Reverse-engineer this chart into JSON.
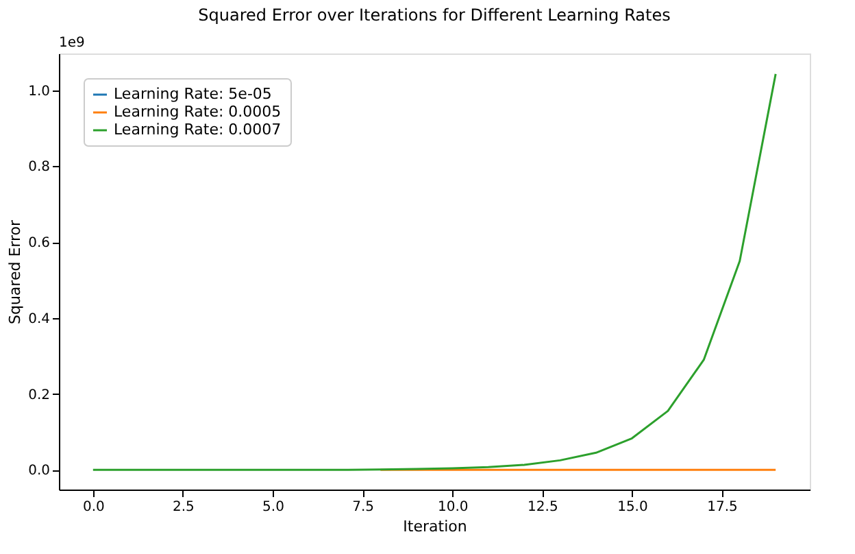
{
  "chart_data": {
    "type": "line",
    "title": "Squared Error over Iterations for Different Learning Rates",
    "xlabel": "Iteration",
    "ylabel": "Squared Error",
    "x": [
      0,
      1,
      2,
      3,
      4,
      5,
      6,
      7,
      8,
      9,
      10,
      11,
      12,
      13,
      14,
      15,
      16,
      17,
      18,
      19
    ],
    "series": [
      {
        "name": "Learning Rate: 5e-05",
        "color": "#1f77b4",
        "values": [
          null,
          null,
          null,
          null,
          null,
          null,
          null,
          null,
          null,
          null,
          null,
          null,
          null,
          null,
          null,
          null,
          null,
          null,
          null,
          null
        ]
      },
      {
        "name": "Learning Rate: 0.0005",
        "color": "#ff7f0e",
        "values": [
          null,
          null,
          null,
          null,
          null,
          null,
          null,
          null,
          0,
          0,
          0,
          0,
          0,
          0,
          0,
          0,
          0,
          0,
          0,
          0
        ]
      },
      {
        "name": "Learning Rate: 0.0007",
        "color": "#2ca02c",
        "values": [
          0,
          0,
          0,
          0,
          0,
          0,
          0,
          0,
          0.001,
          0.002,
          0.004,
          0.007,
          0.013,
          0.025,
          0.045,
          0.083,
          0.155,
          0.29,
          0.55,
          1.043
        ]
      }
    ],
    "xlim": [
      -0.95,
      19.95
    ],
    "ylim": [
      -0.052,
      1.097
    ],
    "xticks": [
      {
        "value": 0,
        "label": "0.0"
      },
      2.5,
      {
        "value": 5,
        "label": "5.0"
      },
      7.5,
      {
        "value": 10,
        "label": "10.0"
      },
      12.5,
      {
        "value": 15,
        "label": "15.0"
      },
      17.5
    ],
    "yticks": [
      {
        "value": 0,
        "label": "0.0"
      },
      0.2,
      0.4,
      0.6,
      0.8,
      {
        "value": 1,
        "label": "1.0"
      }
    ],
    "annotations": [
      "1e9"
    ],
    "legend": "top left",
    "grid": false
  }
}
